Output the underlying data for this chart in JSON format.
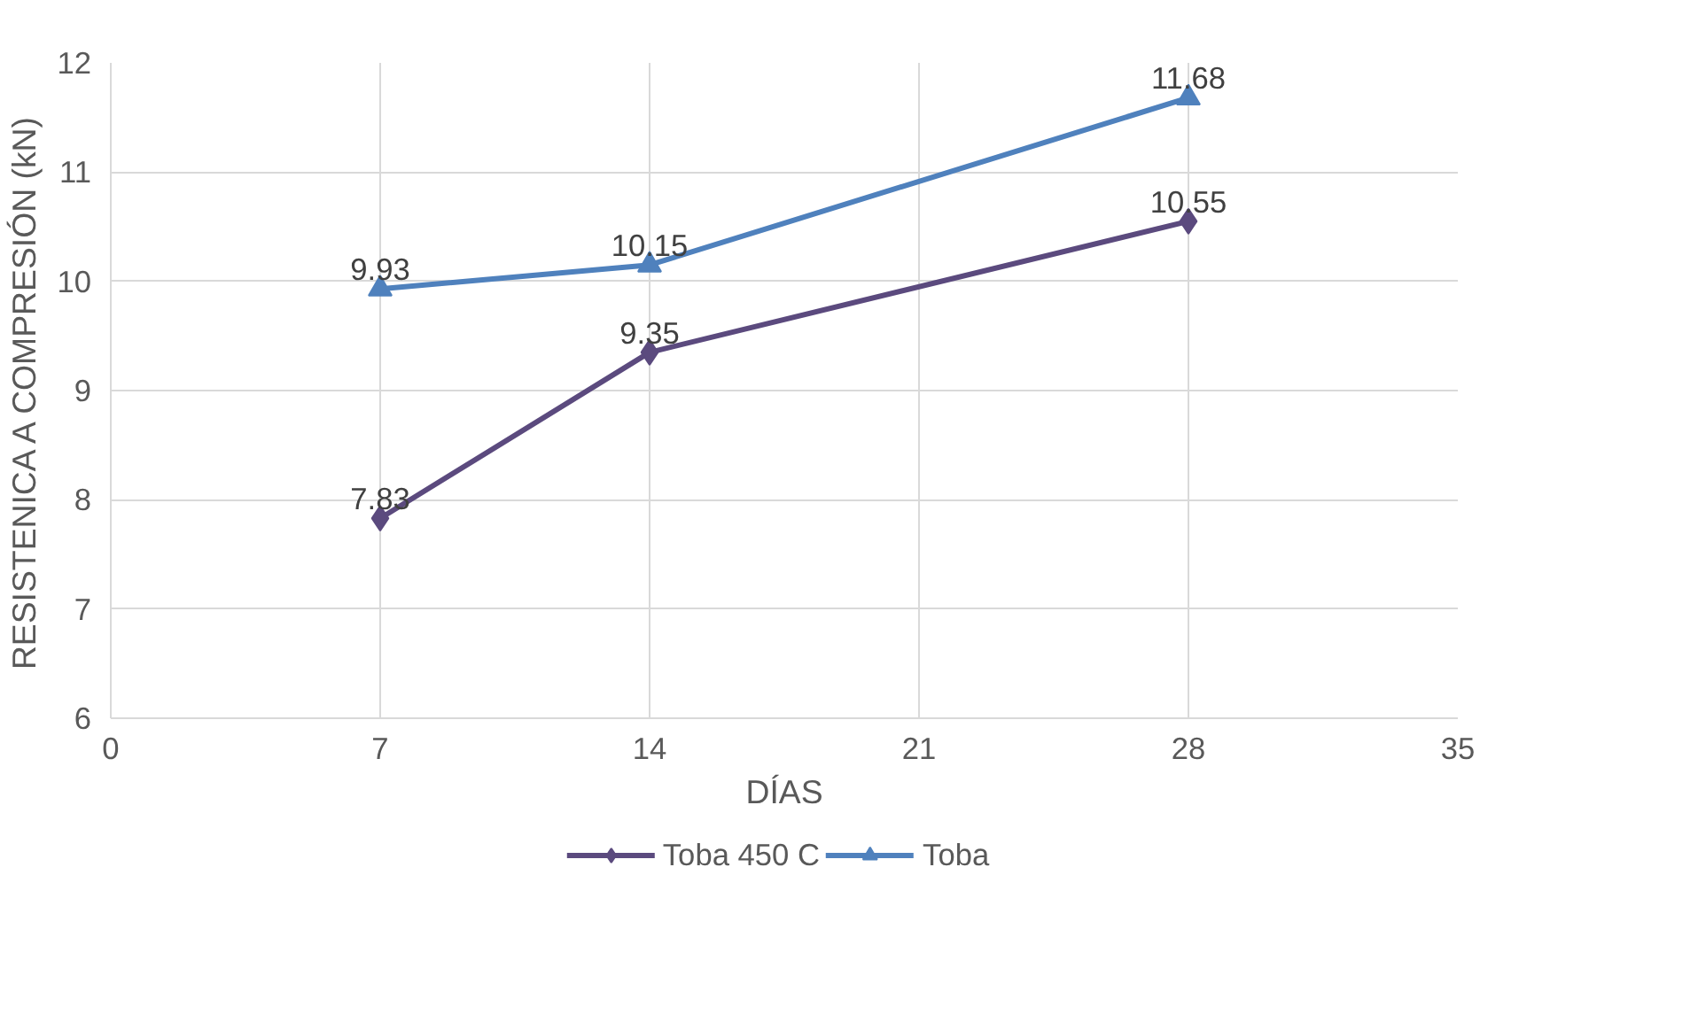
{
  "chart_data": {
    "type": "line",
    "xlabel": "DÍAS",
    "ylabel": "RESISTENICA A COMPRESIÓN (kN)",
    "x": [
      7,
      14,
      28
    ],
    "series": [
      {
        "name": "Toba 450 C",
        "color": "#5b4a7e",
        "marker": "diamond",
        "values": [
          7.83,
          9.35,
          10.55
        ]
      },
      {
        "name": "Toba",
        "color": "#4f81bd",
        "marker": "triangle",
        "values": [
          9.93,
          10.15,
          11.68
        ]
      }
    ],
    "xlim": [
      0,
      35
    ],
    "xticks": [
      0,
      7,
      14,
      21,
      28,
      35
    ],
    "ylim": [
      6,
      12
    ],
    "yticks": [
      6,
      7,
      8,
      9,
      10,
      11,
      12
    ],
    "grid": true,
    "legend": "bottom",
    "data_labels": true,
    "line_style": "solid"
  }
}
